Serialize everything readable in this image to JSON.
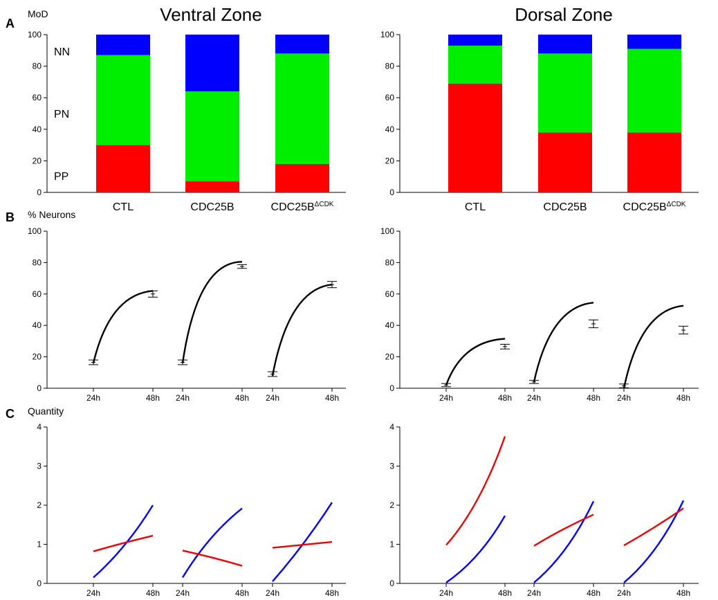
{
  "figure": {
    "zone_titles": [
      "Ventral Zone",
      "Dorsal Zone"
    ],
    "panel_labels": [
      "A",
      "B",
      "C"
    ],
    "ylabels": [
      "MoD",
      "% Neurons",
      "Quantity"
    ],
    "colors": {
      "PP": "#ff0000",
      "PN": "#00ee00",
      "NN": "#0000ff",
      "fit": "#000000",
      "blue_curve": "#0000ff",
      "red_curve": "#ee0000"
    }
  },
  "chart_data": [
    {
      "type": "bar",
      "stacked": true,
      "panel": "A",
      "zone": "Ventral Zone",
      "ylabel": "MoD",
      "ylim": [
        0,
        100
      ],
      "yticks": [
        0,
        20,
        40,
        60,
        80,
        100
      ],
      "categories": [
        "CTL",
        "CDC25B",
        "CDC25B"
      ],
      "category_superscripts": [
        "",
        "",
        "ΔCDK"
      ],
      "series": [
        {
          "name": "PP",
          "values": [
            30,
            7,
            18
          ]
        },
        {
          "name": "PN",
          "values": [
            57,
            57,
            70
          ]
        },
        {
          "name": "NN",
          "values": [
            13,
            36,
            12
          ]
        }
      ],
      "legend_placement": "left"
    },
    {
      "type": "bar",
      "stacked": true,
      "panel": "A",
      "zone": "Dorsal Zone",
      "ylim": [
        0,
        100
      ],
      "yticks": [
        0,
        20,
        40,
        60,
        80,
        100
      ],
      "categories": [
        "CTL",
        "CDC25B",
        "CDC25B"
      ],
      "category_superscripts": [
        "",
        "",
        "ΔCDK"
      ],
      "series": [
        {
          "values": [
            69,
            38,
            38
          ]
        },
        {
          "values": [
            24,
            50,
            53
          ]
        },
        {
          "values": [
            7,
            12,
            9
          ]
        }
      ]
    },
    {
      "type": "line",
      "panel": "B",
      "zone": "Ventral Zone",
      "ylabel": "% Neurons",
      "ylim": [
        0,
        100
      ],
      "yticks": [
        0,
        20,
        40,
        60,
        80,
        100
      ],
      "xtick_labels": [
        "24h",
        "48h"
      ],
      "groups": [
        {
          "x": [
            24,
            48
          ],
          "y": [
            16.5,
            60
          ],
          "err": [
            1.5,
            2
          ],
          "curve": [
            16,
            62
          ],
          "bow": 0.45
        },
        {
          "x": [
            24,
            48
          ],
          "y": [
            16.5,
            77.5
          ],
          "err": [
            1.5,
            1.2
          ],
          "curve": [
            16,
            80.5
          ],
          "bow": 0.5
        },
        {
          "x": [
            24,
            48
          ],
          "y": [
            9,
            66
          ],
          "err": [
            1.5,
            2
          ],
          "curve": [
            8,
            66
          ],
          "bow": 0.45
        }
      ]
    },
    {
      "type": "line",
      "panel": "B",
      "zone": "Dorsal Zone",
      "ylim": [
        0,
        100
      ],
      "yticks": [
        0,
        20,
        40,
        60,
        80,
        100
      ],
      "xtick_labels": [
        "24h",
        "48h"
      ],
      "groups": [
        {
          "x": [
            24,
            48
          ],
          "y": [
            2,
            26.5
          ],
          "err": [
            1,
            1.5
          ],
          "curve": [
            2,
            31.5
          ],
          "bow": 0.45
        },
        {
          "x": [
            24,
            48
          ],
          "y": [
            4,
            41
          ],
          "err": [
            1,
            2.5
          ],
          "curve": [
            4,
            54.5
          ],
          "bow": 0.45
        },
        {
          "x": [
            24,
            48
          ],
          "y": [
            1.5,
            37
          ],
          "err": [
            1.2,
            2.5
          ],
          "curve": [
            0,
            52.5
          ],
          "bow": 0.45
        }
      ]
    },
    {
      "type": "line",
      "panel": "C",
      "zone": "Ventral Zone",
      "ylabel": "Quantity",
      "ylim": [
        0,
        4
      ],
      "yticks": [
        0,
        1,
        2,
        3,
        4
      ],
      "xtick_labels": [
        "24h",
        "48h"
      ],
      "groups": [
        {
          "blue": [
            0.15,
            2.0
          ],
          "blue_bow": -0.1,
          "red": [
            0.82,
            1.22
          ],
          "red_bow": 0.03
        },
        {
          "blue": [
            0.15,
            1.92
          ],
          "blue_bow": 0.12,
          "red": [
            0.84,
            0.45
          ],
          "red_bow": -0.05
        },
        {
          "blue": [
            0.05,
            2.07
          ],
          "blue_bow": -0.05,
          "red": [
            0.91,
            1.06
          ],
          "red_bow": 0.0
        }
      ]
    },
    {
      "type": "line",
      "panel": "C",
      "zone": "Dorsal Zone",
      "ylim": [
        0,
        4
      ],
      "yticks": [
        0,
        1,
        2,
        3,
        4
      ],
      "xtick_labels": [
        "24h",
        "48h"
      ],
      "groups": [
        {
          "blue": [
            0.02,
            1.73
          ],
          "blue_bow": -0.15,
          "red": [
            0.98,
            3.76
          ],
          "red_bow": -0.15
        },
        {
          "blue": [
            0.02,
            2.1
          ],
          "blue_bow": -0.15,
          "red": [
            0.96,
            1.76
          ],
          "red_bow": 0.05
        },
        {
          "blue": [
            0.02,
            2.12
          ],
          "blue_bow": -0.15,
          "red": [
            0.97,
            1.92
          ],
          "red_bow": -0.03
        }
      ]
    }
  ]
}
